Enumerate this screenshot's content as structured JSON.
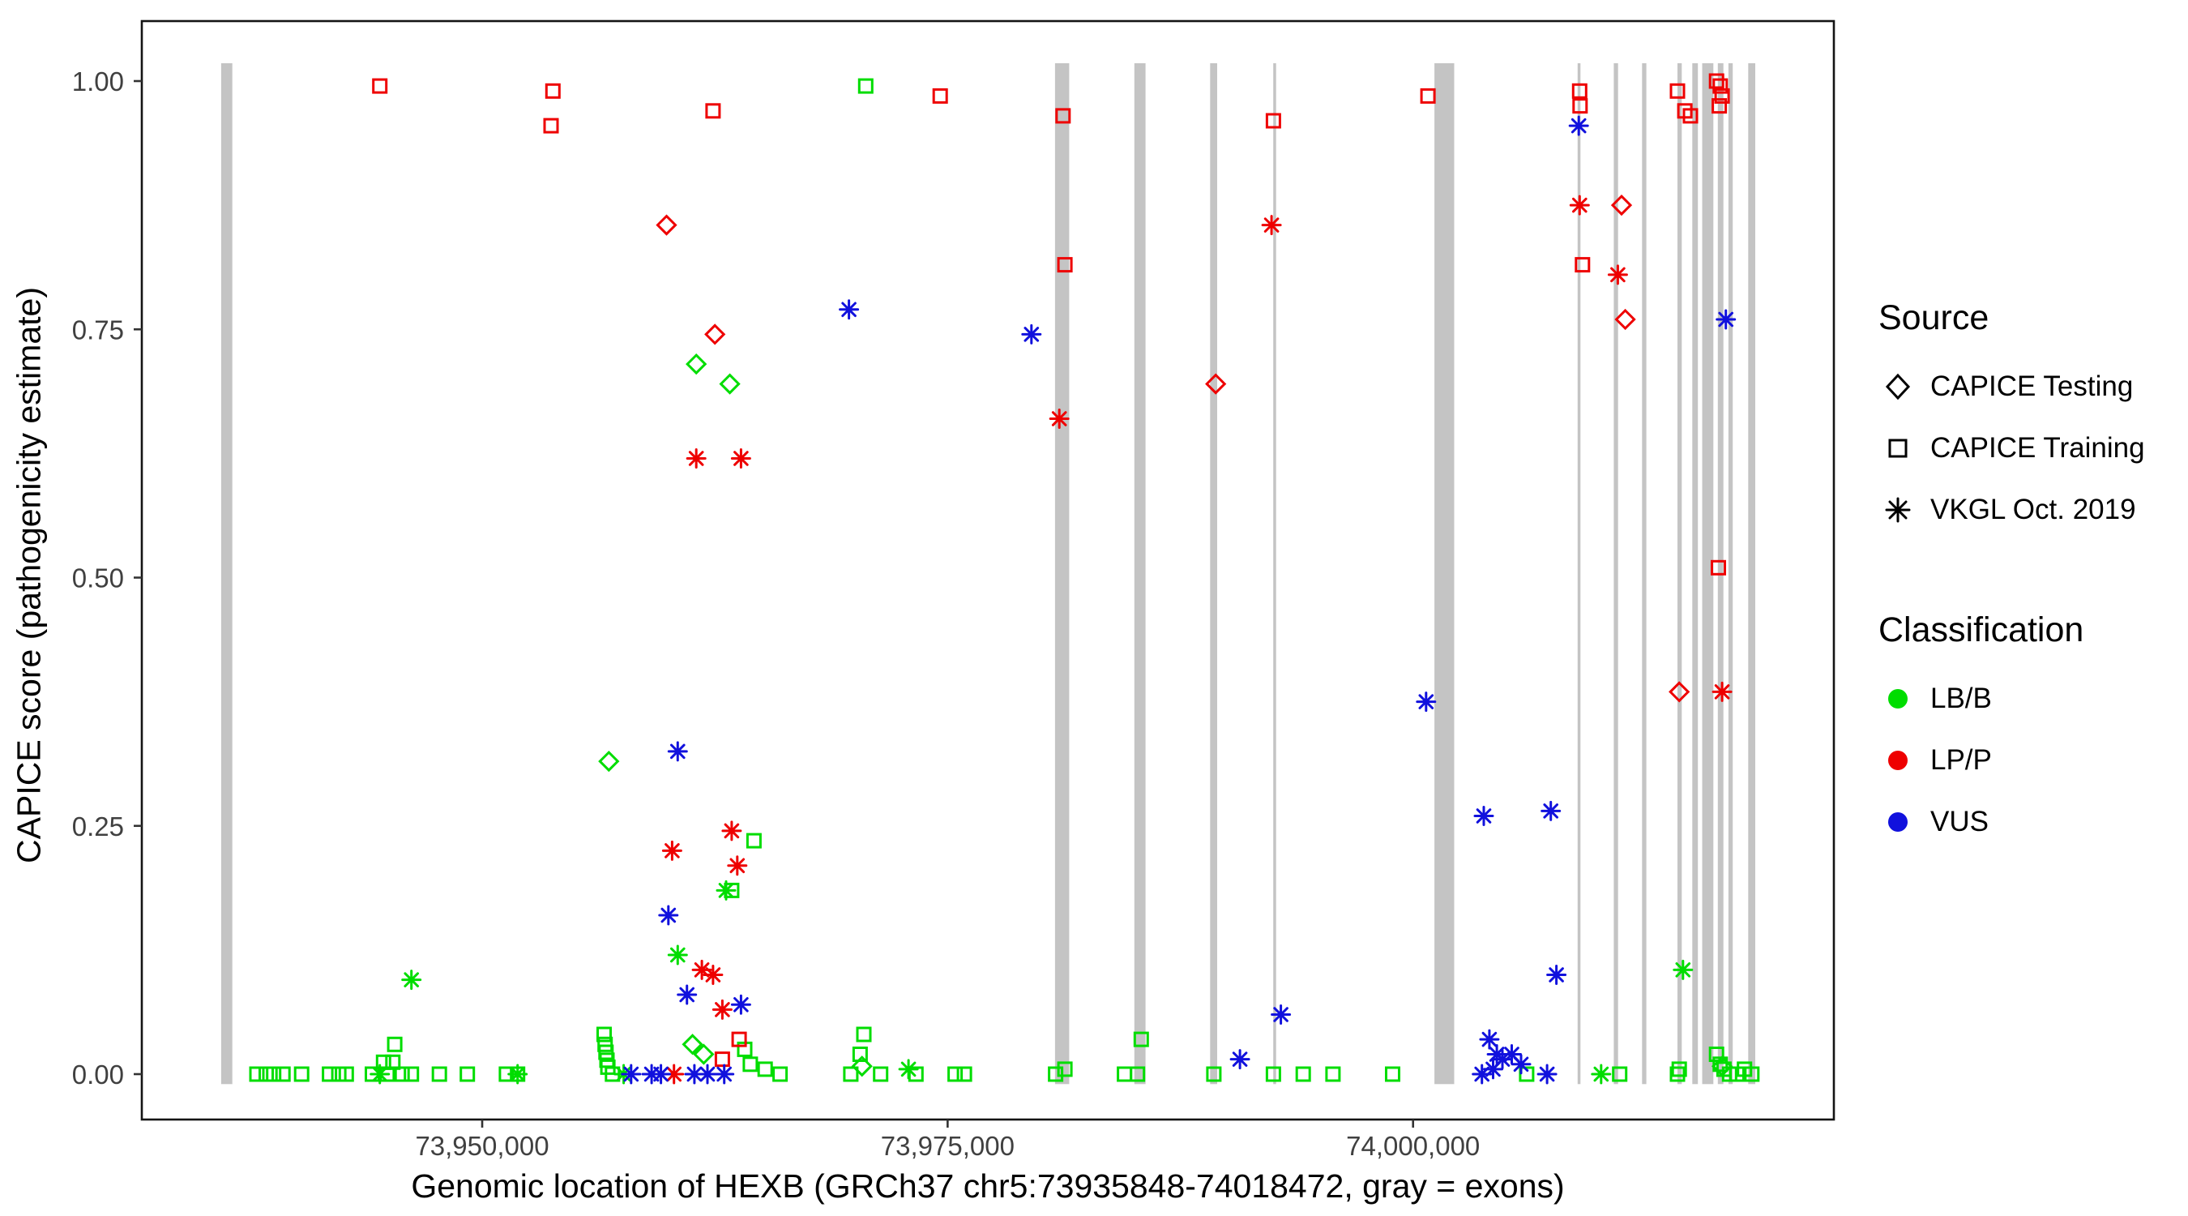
{
  "chart_data": {
    "type": "scatter",
    "title": "",
    "xlabel": "Genomic location of HEXB (GRCh37 chr5:73935848-74018472, gray = exons)",
    "ylabel": "CAPICE score (pathogenicity estimate)",
    "x_domain": [
      73931717,
      74022603
    ],
    "y_domain": [
      0,
      1
    ],
    "grid": "off",
    "x_ticks": [
      {
        "value": 73950000,
        "label": "73,950,000"
      },
      {
        "value": 73975000,
        "label": "73,975,000"
      },
      {
        "value": 74000000,
        "label": "74,000,000"
      }
    ],
    "y_ticks": [
      {
        "value": 0.0,
        "label": "0.00"
      },
      {
        "value": 0.25,
        "label": "0.25"
      },
      {
        "value": 0.5,
        "label": "0.50"
      },
      {
        "value": 0.75,
        "label": "0.75"
      },
      {
        "value": 1.0,
        "label": "1.00"
      }
    ],
    "colors": {
      "LB/B": "#00dd00",
      "LP/P": "#ee0000",
      "VUS": "#1111dd",
      "exon": "#c4c4c4"
    },
    "shapes": {
      "CAPICE Testing": "diamond",
      "CAPICE Training": "square",
      "VKGL Oct. 2019": "asterisk"
    },
    "legend": {
      "position": "right",
      "source_title": "Source",
      "source_items": [
        {
          "label": "CAPICE Testing",
          "shape": "diamond"
        },
        {
          "label": "CAPICE Training",
          "shape": "square"
        },
        {
          "label": "VKGL Oct. 2019",
          "shape": "asterisk"
        }
      ],
      "class_title": "Classification",
      "class_items": [
        {
          "label": "LB/B",
          "color": "#00dd00"
        },
        {
          "label": "LP/P",
          "color": "#ee0000"
        },
        {
          "label": "VUS",
          "color": "#1111dd"
        }
      ]
    },
    "exons": [
      [
        73935980,
        73936580
      ],
      [
        73980770,
        73981530
      ],
      [
        73985030,
        73985630
      ],
      [
        73989100,
        73989480
      ],
      [
        73992490,
        73992640
      ],
      [
        74001150,
        74002210
      ],
      [
        74008840,
        74008990
      ],
      [
        74010780,
        74011010
      ],
      [
        74012300,
        74012530
      ],
      [
        74014200,
        74014430
      ],
      [
        74015000,
        74015300
      ],
      [
        74015530,
        74016130
      ],
      [
        74016370,
        74016670
      ],
      [
        74016940,
        74017170
      ],
      [
        74018000,
        74018380
      ]
    ],
    "series": [
      {
        "source": "CAPICE Testing",
        "classification": "LB/B",
        "points": [
          [
            73961500,
            0.715
          ],
          [
            73963300,
            0.695
          ],
          [
            73956800,
            0.315
          ],
          [
            73961300,
            0.03
          ],
          [
            73961900,
            0.02
          ],
          [
            73970400,
            0.008
          ],
          [
            74016600,
            0.008
          ]
        ]
      },
      {
        "source": "CAPICE Testing",
        "classification": "LP/P",
        "points": [
          [
            73959900,
            0.855
          ],
          [
            73962500,
            0.745
          ],
          [
            73989400,
            0.695
          ],
          [
            74011200,
            0.875
          ],
          [
            74011400,
            0.76
          ],
          [
            74014300,
            0.385
          ]
        ]
      },
      {
        "source": "CAPICE Training",
        "classification": "LB/B",
        "points": [
          [
            73970600,
            0.995
          ],
          [
            73964600,
            0.235
          ],
          [
            73963400,
            0.185
          ],
          [
            73985400,
            0.035
          ],
          [
            73945300,
            0.03
          ],
          [
            73956550,
            0.04
          ],
          [
            73956600,
            0.03
          ],
          [
            73956650,
            0.022
          ],
          [
            73956700,
            0.014
          ],
          [
            73956750,
            0.007
          ],
          [
            73944700,
            0.012
          ],
          [
            73945200,
            0.012
          ],
          [
            73970500,
            0.04
          ],
          [
            73970300,
            0.02
          ],
          [
            73964100,
            0.025
          ],
          [
            73964400,
            0.01
          ],
          [
            73965200,
            0.005
          ],
          [
            74016300,
            0.02
          ],
          [
            74016500,
            0.01
          ],
          [
            74016700,
            0.005
          ],
          [
            74017800,
            0.005
          ],
          [
            73981300,
            0.005
          ],
          [
            74014300,
            0.005
          ],
          [
            73937900,
            0.0
          ],
          [
            73938400,
            0.0
          ],
          [
            73938800,
            0.0
          ],
          [
            73939300,
            0.0
          ],
          [
            73940300,
            0.0
          ],
          [
            73941800,
            0.0
          ],
          [
            73942300,
            0.0
          ],
          [
            73942700,
            0.0
          ],
          [
            73944100,
            0.0
          ],
          [
            73944900,
            0.0
          ],
          [
            73945700,
            0.0
          ],
          [
            73946200,
            0.0
          ],
          [
            73947700,
            0.0
          ],
          [
            73949200,
            0.0
          ],
          [
            73951300,
            0.0
          ],
          [
            73951900,
            0.0
          ],
          [
            73957000,
            0.0
          ],
          [
            73966000,
            0.0
          ],
          [
            73969800,
            0.0
          ],
          [
            73971400,
            0.0
          ],
          [
            73973300,
            0.0
          ],
          [
            73975400,
            0.0
          ],
          [
            73975900,
            0.0
          ],
          [
            73980800,
            0.0
          ],
          [
            73984500,
            0.0
          ],
          [
            73985200,
            0.0
          ],
          [
            73989300,
            0.0
          ],
          [
            73992500,
            0.0
          ],
          [
            73994100,
            0.0
          ],
          [
            73995700,
            0.0
          ],
          [
            73998900,
            0.0
          ],
          [
            74006100,
            0.0
          ],
          [
            74011100,
            0.0
          ],
          [
            74014200,
            0.0
          ],
          [
            74017000,
            0.0
          ],
          [
            74017400,
            0.0
          ],
          [
            74018200,
            0.0
          ]
        ]
      },
      {
        "source": "CAPICE Training",
        "classification": "LP/P",
        "points": [
          [
            73944500,
            0.995
          ],
          [
            73953800,
            0.99
          ],
          [
            73953700,
            0.955
          ],
          [
            73962400,
            0.97
          ],
          [
            73974600,
            0.985
          ],
          [
            73981200,
            0.965
          ],
          [
            73992500,
            0.96
          ],
          [
            74000800,
            0.985
          ],
          [
            74008950,
            0.99
          ],
          [
            74008970,
            0.975
          ],
          [
            74009100,
            0.815
          ],
          [
            73981300,
            0.815
          ],
          [
            74014200,
            0.99
          ],
          [
            74014600,
            0.97
          ],
          [
            74014900,
            0.965
          ],
          [
            74016300,
            1.0
          ],
          [
            74016500,
            0.995
          ],
          [
            74016450,
            0.975
          ],
          [
            74016600,
            0.985
          ],
          [
            74016400,
            0.51
          ],
          [
            73963800,
            0.035
          ],
          [
            73962900,
            0.015
          ]
        ]
      },
      {
        "source": "VKGL Oct. 2019",
        "classification": "LB/B",
        "points": [
          [
            73946200,
            0.095
          ],
          [
            74014500,
            0.105
          ],
          [
            73963100,
            0.185
          ],
          [
            73960500,
            0.12
          ],
          [
            73944500,
            0.0
          ],
          [
            73951900,
            0.0
          ],
          [
            73957600,
            0.0
          ],
          [
            73972900,
            0.005
          ],
          [
            74010100,
            0.0
          ]
        ]
      },
      {
        "source": "VKGL Oct. 2019",
        "classification": "LP/P",
        "points": [
          [
            73961500,
            0.62
          ],
          [
            73963900,
            0.62
          ],
          [
            73992400,
            0.855
          ],
          [
            73981000,
            0.66
          ],
          [
            74008950,
            0.875
          ],
          [
            74011000,
            0.805
          ],
          [
            74016600,
            0.385
          ],
          [
            73963400,
            0.245
          ],
          [
            73960200,
            0.225
          ],
          [
            73963700,
            0.21
          ],
          [
            73961800,
            0.105
          ],
          [
            73962400,
            0.1
          ],
          [
            73962900,
            0.065
          ],
          [
            73960300,
            0.0
          ]
        ]
      },
      {
        "source": "VKGL Oct. 2019",
        "classification": "VUS",
        "points": [
          [
            73969700,
            0.77
          ],
          [
            73979500,
            0.745
          ],
          [
            74008900,
            0.955
          ],
          [
            74016800,
            0.76
          ],
          [
            74000700,
            0.375
          ],
          [
            73960500,
            0.325
          ],
          [
            74003800,
            0.26
          ],
          [
            74007400,
            0.265
          ],
          [
            74007700,
            0.1
          ],
          [
            73992900,
            0.06
          ],
          [
            73960000,
            0.16
          ],
          [
            73961000,
            0.08
          ],
          [
            73963900,
            0.07
          ],
          [
            73990700,
            0.015
          ],
          [
            74004100,
            0.035
          ],
          [
            74004500,
            0.02
          ],
          [
            74004800,
            0.015
          ],
          [
            74005300,
            0.02
          ],
          [
            74005800,
            0.01
          ],
          [
            74003700,
            0.0
          ],
          [
            74004300,
            0.005
          ],
          [
            74007200,
            0.0
          ],
          [
            73958000,
            0.0
          ],
          [
            73959100,
            0.0
          ],
          [
            73959600,
            0.0
          ],
          [
            73961400,
            0.0
          ],
          [
            73962100,
            0.0
          ],
          [
            73963000,
            0.0
          ]
        ]
      }
    ]
  }
}
